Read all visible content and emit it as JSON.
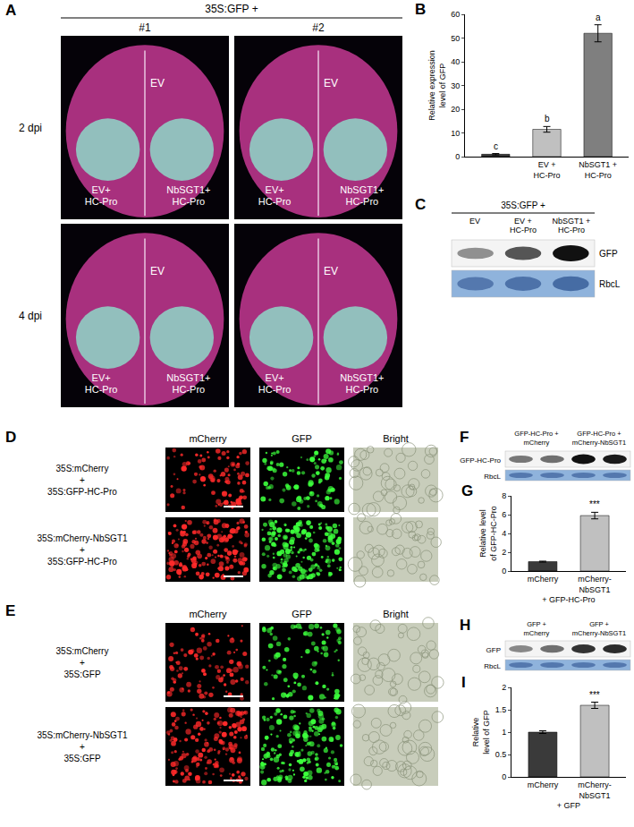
{
  "chart_data": [
    {
      "type": "bar",
      "categories": [
        null,
        "EV + HC-Pro",
        "NbSGT1 + HC-Pro"
      ],
      "values": [
        1,
        11.5,
        52
      ],
      "errors": [
        0.3,
        1.2,
        3.6
      ],
      "significance": [
        "c",
        "b",
        "a"
      ],
      "colors": [
        "#3a3a3a",
        "#c0c0c0",
        "#7f7f7f"
      ],
      "y_label": "Relative expression level of GFP",
      "ylim": [
        0,
        60
      ],
      "yticks": [
        0,
        10,
        20,
        30,
        40,
        50,
        60
      ]
    },
    {
      "type": "bar",
      "categories": [
        "mCherry",
        "mCherry-NbSGT1"
      ],
      "values": [
        1,
        5.9
      ],
      "errors": [
        0.05,
        0.35
      ],
      "significance": [
        null,
        "***"
      ],
      "colors": [
        "#3a3a3a",
        "#c0c0c0"
      ],
      "x_label": "+ GFP-HC-Pro",
      "y_label": "Relative level of GFP-HC-Pro",
      "ylim": [
        0,
        8
      ],
      "yticks": [
        0,
        2,
        4,
        6,
        8
      ]
    },
    {
      "type": "bar",
      "categories": [
        "mCherry",
        "mCherry-NbSGT1"
      ],
      "values": [
        1,
        1.6
      ],
      "errors": [
        0.03,
        0.07
      ],
      "significance": [
        null,
        "***"
      ],
      "colors": [
        "#3a3a3a",
        "#c0c0c0"
      ],
      "x_label": "+ GFP",
      "y_label": "Relative level of GFP",
      "ylim": [
        0,
        2
      ],
      "yticks": [
        0,
        0.5,
        1,
        1.5,
        2
      ]
    }
  ],
  "chart_letters": [
    "B",
    "G",
    "I"
  ],
  "panel_A": {
    "letter": "A",
    "header": "35S:GFP +",
    "columns": [
      "#1",
      "#2"
    ],
    "rows": [
      "2 dpi",
      "4 dpi"
    ],
    "top_label": "EV",
    "left_label": "EV+ HC-Pro",
    "right_label": "NbSGT1+ HC-Pro"
  },
  "panel_C": {
    "letter": "C",
    "header": "35S:GFP +",
    "lanes": [
      "EV",
      "EV + HC-Pro",
      "NbSGT1 + HC-Pro"
    ],
    "bands": [
      "GFP",
      "RbcL"
    ]
  },
  "panel_D": {
    "letter": "D",
    "columns": [
      "mCherry",
      "GFP",
      "Bright"
    ],
    "rows": [
      "35S:mCherry + 35S:GFP-HC-Pro",
      "35S:mCherry-NbSGT1 + 35S:GFP-HC-Pro"
    ]
  },
  "panel_E": {
    "letter": "E",
    "columns": [
      "mCherry",
      "GFP",
      "Bright"
    ],
    "rows": [
      "35S:mCherry + 35S:GFP",
      "35S:mCherry-NbSGT1 + 35S:GFP"
    ]
  },
  "panel_F": {
    "letter": "F",
    "lanes": [
      "GFP-HC-Pro + mCherry",
      "GFP-HC-Pro + mCherry-NbSGT1"
    ],
    "bands": [
      "GFP-HC-Pro",
      "RbcL"
    ]
  },
  "panel_H": {
    "letter": "H",
    "lanes": [
      "GFP + mCherry",
      "GFP + mCherry-NbSGT1"
    ],
    "bands": [
      "GFP",
      "RbcL"
    ]
  }
}
